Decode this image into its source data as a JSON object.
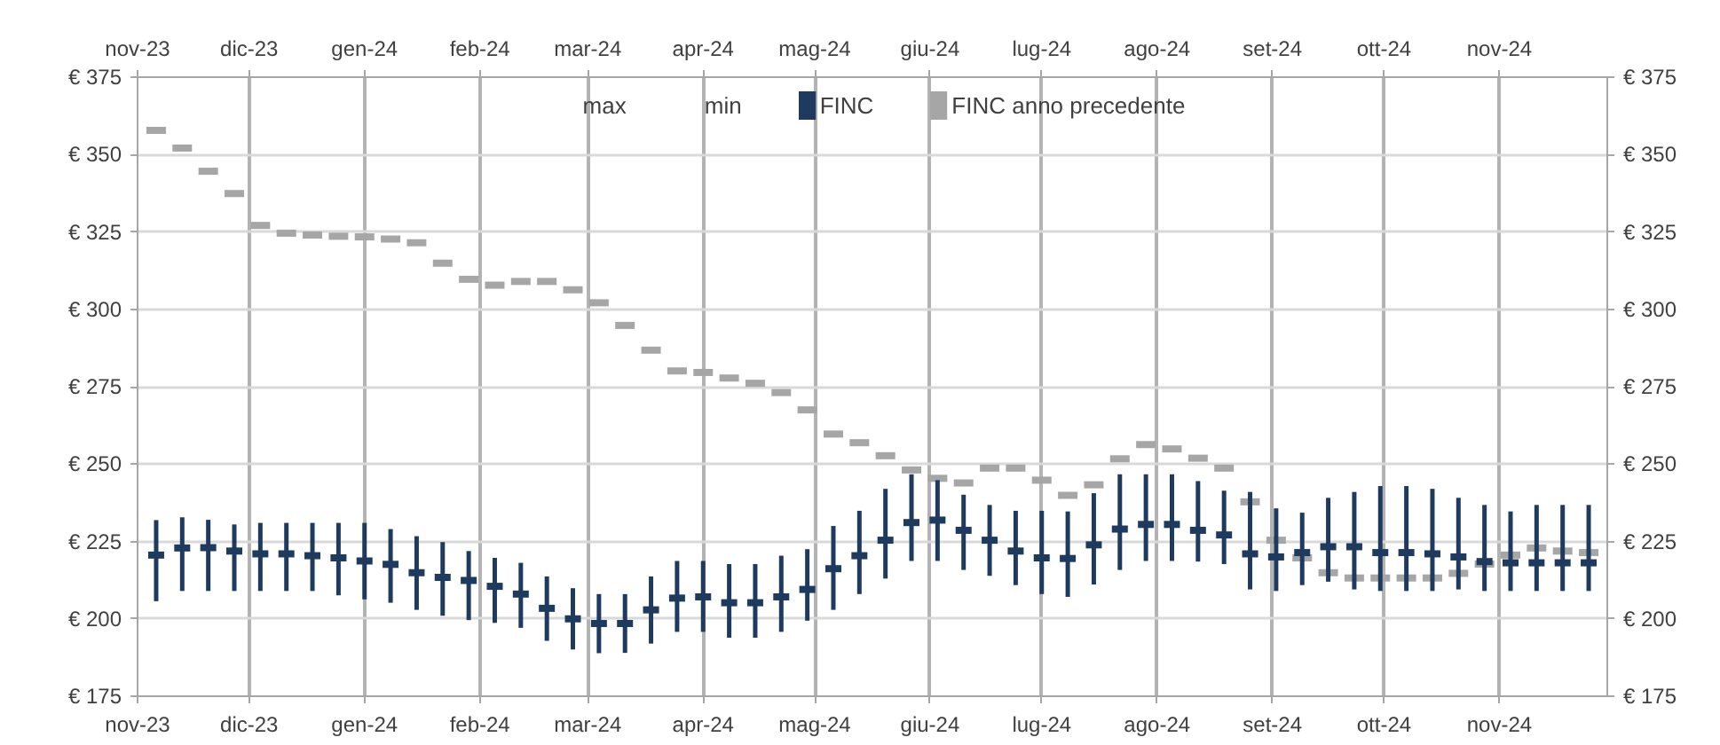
{
  "chart_data": {
    "type": "scatter",
    "x": [
      "2023-11-06",
      "2023-11-13",
      "2023-11-20",
      "2023-11-27",
      "2023-12-04",
      "2023-12-11",
      "2023-12-18",
      "2023-12-25",
      "2024-01-01",
      "2024-01-08",
      "2024-01-15",
      "2024-01-22",
      "2024-01-29",
      "2024-02-05",
      "2024-02-12",
      "2024-02-19",
      "2024-02-26",
      "2024-03-04",
      "2024-03-11",
      "2024-03-18",
      "2024-03-25",
      "2024-04-01",
      "2024-04-08",
      "2024-04-15",
      "2024-04-22",
      "2024-04-29",
      "2024-05-06",
      "2024-05-13",
      "2024-05-20",
      "2024-05-27",
      "2024-06-03",
      "2024-06-10",
      "2024-06-17",
      "2024-06-24",
      "2024-07-01",
      "2024-07-08",
      "2024-07-15",
      "2024-07-22",
      "2024-07-29",
      "2024-08-05",
      "2024-08-12",
      "2024-08-19",
      "2024-08-26",
      "2024-09-02",
      "2024-09-09",
      "2024-09-16",
      "2024-09-23",
      "2024-09-30",
      "2024-10-07",
      "2024-10-14",
      "2024-10-21",
      "2024-10-28",
      "2024-11-04",
      "2024-11-11",
      "2024-11-18",
      "2024-11-25"
    ],
    "series": [
      {
        "name": "FINC",
        "color": "#1f3a5f",
        "values": [
          220.6,
          222.9,
          223,
          221.9,
          221,
          221,
          220.4,
          219.7,
          218.7,
          217.6,
          214.9,
          213.4,
          212.4,
          210.5,
          208,
          203.4,
          200,
          198.5,
          198.5,
          202.9,
          206.7,
          207.1,
          205.2,
          205.2,
          207.1,
          209.5,
          216.2,
          220.4,
          225.4,
          231.1,
          231.9,
          228.6,
          225.4,
          221.9,
          219.7,
          219.5,
          223.9,
          229,
          230.5,
          230.5,
          228.6,
          227.1,
          221,
          220,
          221.4,
          223.3,
          223.3,
          221.4,
          221.4,
          221,
          220,
          218.5,
          218.1,
          218.1,
          218.1,
          218.1
        ],
        "errors": [
          [
            205.7,
            231.9
          ],
          [
            209,
            232.8
          ],
          [
            209,
            232
          ],
          [
            209,
            230.5
          ],
          [
            209,
            231
          ],
          [
            209,
            231
          ],
          [
            209,
            231
          ],
          [
            207.6,
            231
          ],
          [
            206.3,
            231
          ],
          [
            205.2,
            229
          ],
          [
            202.9,
            226.7
          ],
          [
            201,
            224.8
          ],
          [
            199.6,
            221.9
          ],
          [
            198.7,
            219.7
          ],
          [
            197.1,
            218.1
          ],
          [
            192.9,
            213.7
          ],
          [
            190.1,
            209.9
          ],
          [
            188.9,
            208
          ],
          [
            189,
            208
          ],
          [
            192,
            213.7
          ],
          [
            195.8,
            218.7
          ],
          [
            195.8,
            218.7
          ],
          [
            193.9,
            217.7
          ],
          [
            193.9,
            217.7
          ],
          [
            195.8,
            220.4
          ],
          [
            199.4,
            222.5
          ],
          [
            202.9,
            230
          ],
          [
            208,
            234.9
          ],
          [
            213,
            242
          ],
          [
            218.7,
            246.7
          ],
          [
            218.7,
            244.8
          ],
          [
            215.8,
            240.1
          ],
          [
            213.9,
            236.8
          ],
          [
            210.9,
            234.9
          ],
          [
            208,
            234.9
          ],
          [
            207.1,
            234.7
          ],
          [
            211.1,
            240.6
          ],
          [
            215.8,
            246.7
          ],
          [
            218.7,
            246.7
          ],
          [
            218.7,
            246.7
          ],
          [
            218.5,
            244.5
          ],
          [
            217.7,
            241.4
          ],
          [
            209.5,
            241
          ],
          [
            209,
            235.7
          ],
          [
            210.9,
            234.3
          ],
          [
            212,
            239.1
          ],
          [
            209.5,
            241
          ],
          [
            209,
            242.9
          ],
          [
            209,
            242.9
          ],
          [
            209,
            242
          ],
          [
            209.5,
            239.1
          ],
          [
            209,
            236.8
          ],
          [
            209,
            234.7
          ],
          [
            209,
            236.8
          ],
          [
            209,
            236.8
          ],
          [
            209,
            236.8
          ]
        ]
      },
      {
        "name": "FINC anno precedente",
        "color": "#a6a6a6",
        "values": [
          357.8,
          352.1,
          344.6,
          337.4,
          327.1,
          324.6,
          324,
          323.6,
          323.4,
          322.7,
          321.5,
          314.9,
          309.7,
          307.8,
          309,
          309,
          306.3,
          302.1,
          294.8,
          286.8,
          280.1,
          279.6,
          277.8,
          276.1,
          273.1,
          267.5,
          259.7,
          256.9,
          252.7,
          248.1,
          245.4,
          243.9,
          248.7,
          248.7,
          244.8,
          239.9,
          243.3,
          251.7,
          256.3,
          254.9,
          251.9,
          248.7,
          237.8,
          225.4,
          219.7,
          214.9,
          213.2,
          213.2,
          213.2,
          213.2,
          214.7,
          217.7,
          220.6,
          222.9,
          221.9,
          221.4
        ]
      }
    ],
    "annotations": [
      "max",
      "min"
    ],
    "xlim": [
      "2023-11-01",
      "2024-11-30"
    ],
    "xticks": [
      {
        "value": "2023-11-01",
        "label": "nov-23"
      },
      {
        "value": "2023-12-01",
        "label": "dic-23"
      },
      {
        "value": "2024-01-01",
        "label": "gen-24"
      },
      {
        "value": "2024-02-01",
        "label": "feb-24"
      },
      {
        "value": "2024-03-01",
        "label": "mar-24"
      },
      {
        "value": "2024-04-01",
        "label": "apr-24"
      },
      {
        "value": "2024-05-01",
        "label": "mag-24"
      },
      {
        "value": "2024-06-01",
        "label": "giu-24"
      },
      {
        "value": "2024-07-01",
        "label": "lug-24"
      },
      {
        "value": "2024-08-01",
        "label": "ago-24"
      },
      {
        "value": "2024-09-01",
        "label": "set-24"
      },
      {
        "value": "2024-10-01",
        "label": "ott-24"
      },
      {
        "value": "2024-11-01",
        "label": "nov-24"
      }
    ],
    "x2lim": [
      "2023-11-01",
      "2024-11-30"
    ],
    "x2ticks": [
      {
        "value": "2023-11-01",
        "label": "nov-23"
      },
      {
        "value": "2023-12-01",
        "label": "dic-23"
      },
      {
        "value": "2024-01-01",
        "label": "gen-24"
      },
      {
        "value": "2024-02-01",
        "label": "feb-24"
      },
      {
        "value": "2024-03-01",
        "label": "mar-24"
      },
      {
        "value": "2024-04-01",
        "label": "apr-24"
      },
      {
        "value": "2024-05-01",
        "label": "mag-24"
      },
      {
        "value": "2024-06-01",
        "label": "giu-24"
      },
      {
        "value": "2024-07-01",
        "label": "lug-24"
      },
      {
        "value": "2024-08-01",
        "label": "ago-24"
      },
      {
        "value": "2024-09-01",
        "label": "set-24"
      },
      {
        "value": "2024-10-01",
        "label": "ott-24"
      },
      {
        "value": "2024-11-01",
        "label": "nov-24"
      }
    ],
    "ylim": [
      175,
      375
    ],
    "yticks": [
      {
        "value": 175,
        "label": "€ 175"
      },
      {
        "value": 200,
        "label": "€ 200"
      },
      {
        "value": 225,
        "label": "€ 225"
      },
      {
        "value": 250,
        "label": "€ 250"
      },
      {
        "value": 275,
        "label": "€ 275"
      },
      {
        "value": 300,
        "label": "€ 300"
      },
      {
        "value": 325,
        "label": "€ 325"
      },
      {
        "value": 350,
        "label": "€ 350"
      },
      {
        "value": 375,
        "label": "€ 375"
      }
    ],
    "y2lim": [
      175,
      375
    ],
    "y2ticks": [
      {
        "value": 175,
        "label": "€ 175"
      },
      {
        "value": 200,
        "label": "€ 200"
      },
      {
        "value": 225,
        "label": "€ 225"
      },
      {
        "value": 250,
        "label": "€ 250"
      },
      {
        "value": 275,
        "label": "€ 275"
      },
      {
        "value": 300,
        "label": "€ 300"
      },
      {
        "value": 325,
        "label": "€ 325"
      },
      {
        "value": 350,
        "label": "€ 350"
      },
      {
        "value": 375,
        "label": "€ 375"
      }
    ],
    "grid": true,
    "legend": "top"
  }
}
